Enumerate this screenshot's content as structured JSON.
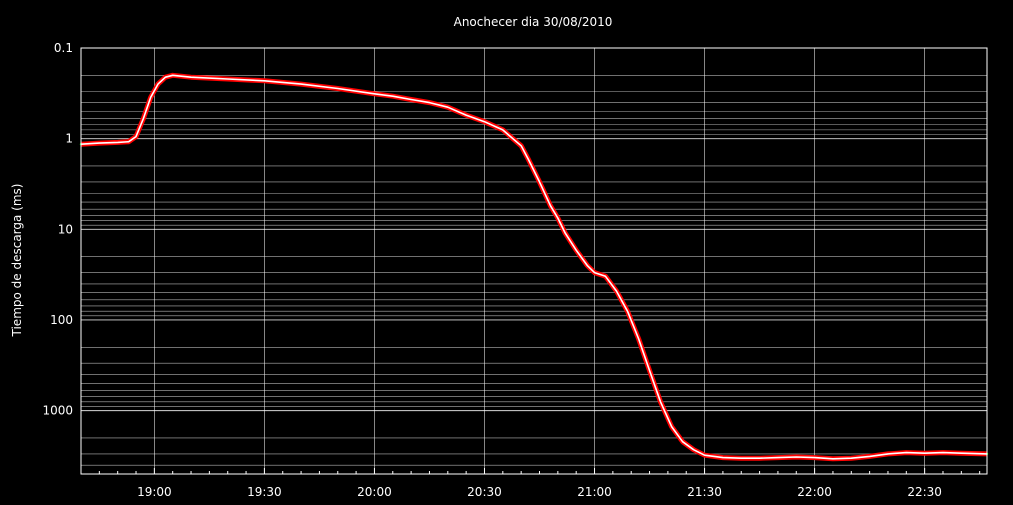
{
  "chart_data": {
    "type": "line",
    "title": "Anochecer dia 30/08/2010",
    "xlabel": "",
    "ylabel": "Tiempo de descarga (ms)",
    "y_scale": "log",
    "y_inverted": true,
    "ylim": [
      0.1,
      5000
    ],
    "y_ticks": [
      "0.1",
      "1",
      "10",
      "100",
      "1000"
    ],
    "xlim": [
      "18:40",
      "22:47"
    ],
    "x_ticks": [
      "19:00",
      "19:30",
      "20:00",
      "20:30",
      "21:00",
      "21:30",
      "22:00",
      "22:30"
    ],
    "grid": true,
    "colors": {
      "background": "#000000",
      "grid": "#ffffff",
      "raw_series": "#00ff00",
      "smooth_outer": "#ff0000",
      "smooth_inner": "#ffffff"
    },
    "series": [
      {
        "name": "",
        "style": "raw",
        "x": [
          "18:40",
          "18:45",
          "18:50",
          "18:53",
          "18:55",
          "18:57",
          "18:59",
          "19:01",
          "19:03",
          "19:05",
          "19:10",
          "19:20",
          "19:30",
          "19:40",
          "19:50",
          "20:00",
          "20:05",
          "20:10",
          "20:15",
          "20:20",
          "20:25",
          "20:30",
          "20:35",
          "20:40",
          "20:42",
          "20:45",
          "20:48",
          "20:50",
          "20:52",
          "20:55",
          "20:58",
          "21:00",
          "21:03",
          "21:06",
          "21:09",
          "21:12",
          "21:15",
          "21:18",
          "21:21",
          "21:24",
          "21:27",
          "21:30",
          "21:35",
          "21:40",
          "21:45",
          "21:50",
          "21:55",
          "22:00",
          "22:05",
          "22:10",
          "22:15",
          "22:20",
          "22:25",
          "22:30",
          "22:35",
          "22:40",
          "22:47"
        ],
        "y": [
          1.15,
          1.12,
          1.1,
          1.08,
          0.95,
          0.6,
          0.35,
          0.25,
          0.21,
          0.2,
          0.21,
          0.22,
          0.23,
          0.25,
          0.28,
          0.32,
          0.34,
          0.37,
          0.4,
          0.45,
          0.55,
          0.65,
          0.8,
          1.2,
          1.7,
          3.0,
          5.5,
          7.5,
          11,
          17,
          25,
          30,
          33,
          48,
          80,
          160,
          360,
          800,
          1500,
          2200,
          2700,
          3100,
          3300,
          3350,
          3350,
          3300,
          3250,
          3300,
          3400,
          3350,
          3200,
          3000,
          2900,
          2950,
          2900,
          2950,
          3000
        ]
      },
      {
        "name": "",
        "style": "smooth",
        "x": [
          "18:40",
          "18:45",
          "18:50",
          "18:53",
          "18:55",
          "18:57",
          "18:59",
          "19:01",
          "19:03",
          "19:05",
          "19:10",
          "19:20",
          "19:30",
          "19:40",
          "19:50",
          "20:00",
          "20:05",
          "20:10",
          "20:15",
          "20:20",
          "20:25",
          "20:30",
          "20:35",
          "20:40",
          "20:42",
          "20:45",
          "20:48",
          "20:50",
          "20:52",
          "20:55",
          "20:58",
          "21:00",
          "21:03",
          "21:06",
          "21:09",
          "21:12",
          "21:15",
          "21:18",
          "21:21",
          "21:24",
          "21:27",
          "21:30",
          "21:35",
          "21:40",
          "21:45",
          "21:50",
          "21:55",
          "22:00",
          "22:05",
          "22:10",
          "22:15",
          "22:20",
          "22:25",
          "22:30",
          "22:35",
          "22:40",
          "22:47"
        ],
        "y": [
          1.15,
          1.12,
          1.1,
          1.08,
          0.95,
          0.6,
          0.35,
          0.25,
          0.21,
          0.2,
          0.21,
          0.22,
          0.23,
          0.25,
          0.28,
          0.32,
          0.34,
          0.37,
          0.4,
          0.45,
          0.55,
          0.65,
          0.8,
          1.2,
          1.7,
          3.0,
          5.5,
          7.5,
          11,
          17,
          25,
          30,
          33,
          48,
          80,
          160,
          360,
          800,
          1500,
          2200,
          2700,
          3100,
          3300,
          3350,
          3350,
          3300,
          3250,
          3300,
          3400,
          3350,
          3200,
          3000,
          2900,
          2950,
          2900,
          2950,
          3000
        ]
      }
    ]
  }
}
